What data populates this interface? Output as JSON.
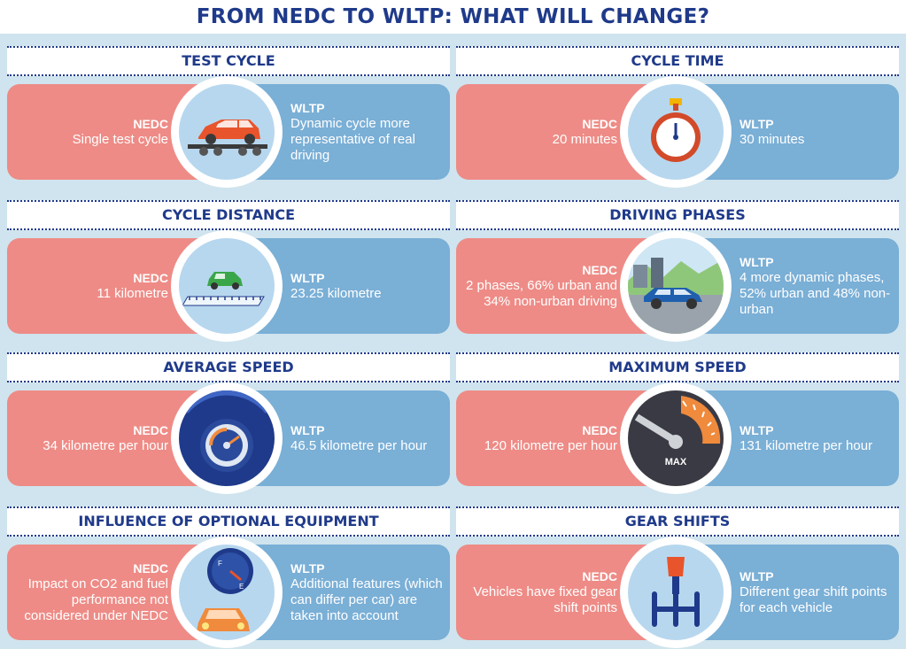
{
  "title": "FROM NEDC TO WLTP: WHAT WILL CHANGE?",
  "sections": [
    {
      "heading": "TEST CYCLE",
      "icon": "car-on-dyno-icon",
      "nedc": {
        "label": "NEDC",
        "text": "Single test cycle"
      },
      "wltp": {
        "label": "WLTP",
        "text": "Dynamic cycle more representative of real driving"
      }
    },
    {
      "heading": "CYCLE TIME",
      "icon": "stopwatch-icon",
      "nedc": {
        "label": "NEDC",
        "text": "20 minutes"
      },
      "wltp": {
        "label": "WLTP",
        "text": "30 minutes"
      }
    },
    {
      "heading": "CYCLE DISTANCE",
      "icon": "car-on-ruler-icon",
      "nedc": {
        "label": "NEDC",
        "text": "11 kilometre"
      },
      "wltp": {
        "label": "WLTP",
        "text": "23.25 kilometre"
      }
    },
    {
      "heading": "DRIVING PHASES",
      "icon": "car-city-road-icon",
      "nedc": {
        "label": "NEDC",
        "text": "2 phases, 66% urban and 34% non-urban driving"
      },
      "wltp": {
        "label": "WLTP",
        "text": "4 more dynamic phases, 52% urban and 48% non-urban"
      }
    },
    {
      "heading": "AVERAGE SPEED",
      "icon": "speedometer-icon",
      "nedc": {
        "label": "NEDC",
        "text": "34 kilometre per hour"
      },
      "wltp": {
        "label": "WLTP",
        "text": "46.5 kilometre per hour"
      }
    },
    {
      "heading": "MAXIMUM SPEED",
      "icon": "max-gauge-icon",
      "icon_text": "MAX",
      "nedc": {
        "label": "NEDC",
        "text": "120 kilometre per hour"
      },
      "wltp": {
        "label": "WLTP",
        "text": "131 kilometre per hour"
      }
    },
    {
      "heading": "INFLUENCE OF OPTIONAL EQUIPMENT",
      "icon": "fuel-gauge-car-icon",
      "gauge_f": "F",
      "gauge_e": "E",
      "nedc": {
        "label": "NEDC",
        "text": "Impact on CO2 and fuel performance not considered under NEDC"
      },
      "wltp": {
        "label": "WLTP",
        "text": "Additional features (which can differ per car) are taken into account"
      }
    },
    {
      "heading": "GEAR SHIFTS",
      "icon": "gear-shifter-icon",
      "nedc": {
        "label": "NEDC",
        "text": "Vehicles have fixed gear shift points"
      },
      "wltp": {
        "label": "WLTP",
        "text": "Different gear shift points for each vehicle"
      }
    }
  ],
  "colors": {
    "nedc": "#ee8b86",
    "wltp": "#7aafd6",
    "heading": "#1f3a8a",
    "background": "#cfe4ee"
  }
}
